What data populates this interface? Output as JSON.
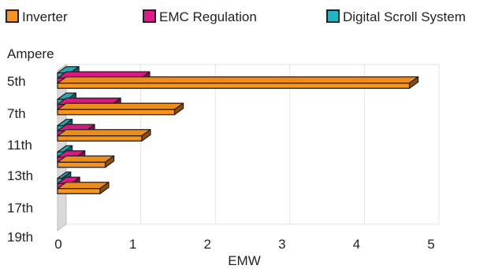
{
  "chart_data": {
    "type": "bar",
    "orientation": "horizontal",
    "style": "3d",
    "categories": [
      "5th",
      "7th",
      "11th",
      "13th",
      "17th"
    ],
    "extra_y_tick": "19th",
    "series": [
      {
        "name": "Inverter",
        "color": "#f7941d",
        "values": [
          4.72,
          1.57,
          1.13,
          0.64,
          0.57
        ]
      },
      {
        "name": "EMC Regulation",
        "color": "#e2198c",
        "values": [
          1.12,
          0.73,
          0.38,
          0.25,
          0.18
        ]
      },
      {
        "name": "Digital Scroll System",
        "color": "#1fb6c1",
        "values": [
          0.17,
          0.13,
          0.08,
          0.08,
          0.06
        ]
      }
    ],
    "x_ticks": [
      "0",
      "1",
      "2",
      "3",
      "4",
      "5"
    ],
    "xlim": [
      0,
      5
    ],
    "xlabel": "EMW",
    "ylabel": "Ampere",
    "grid": true,
    "legend_position": "top"
  }
}
